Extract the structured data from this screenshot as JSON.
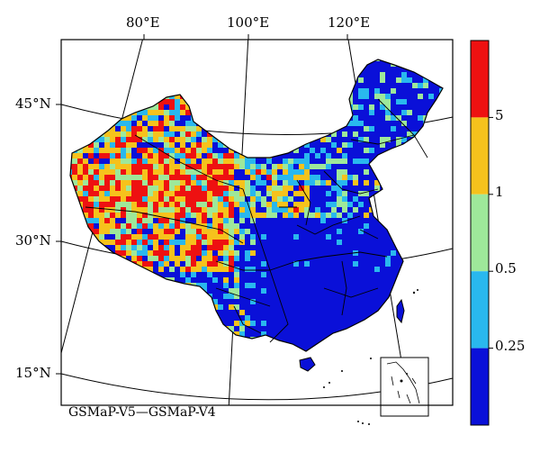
{
  "map": {
    "caption": "GSMaP-V5—GSMaP-V4",
    "longitude_labels": [
      "80°E",
      "100°E",
      "120°E"
    ],
    "latitude_labels": [
      "45°N",
      "30°N",
      "15°N"
    ]
  },
  "legend": {
    "tick_labels": [
      "5",
      "1",
      "0.5",
      "0.25"
    ],
    "bins": [
      {
        "color": "#ee1111",
        "range": "> 5"
      },
      {
        "color": "#f6c21c",
        "range": "1 – 5"
      },
      {
        "color": "#9ee89a",
        "range": "0.5 – 1"
      },
      {
        "color": "#29b8ee",
        "range": "0.25 – 0.5"
      },
      {
        "color": "#0a10d8",
        "range": "< 0.25"
      }
    ]
  }
}
